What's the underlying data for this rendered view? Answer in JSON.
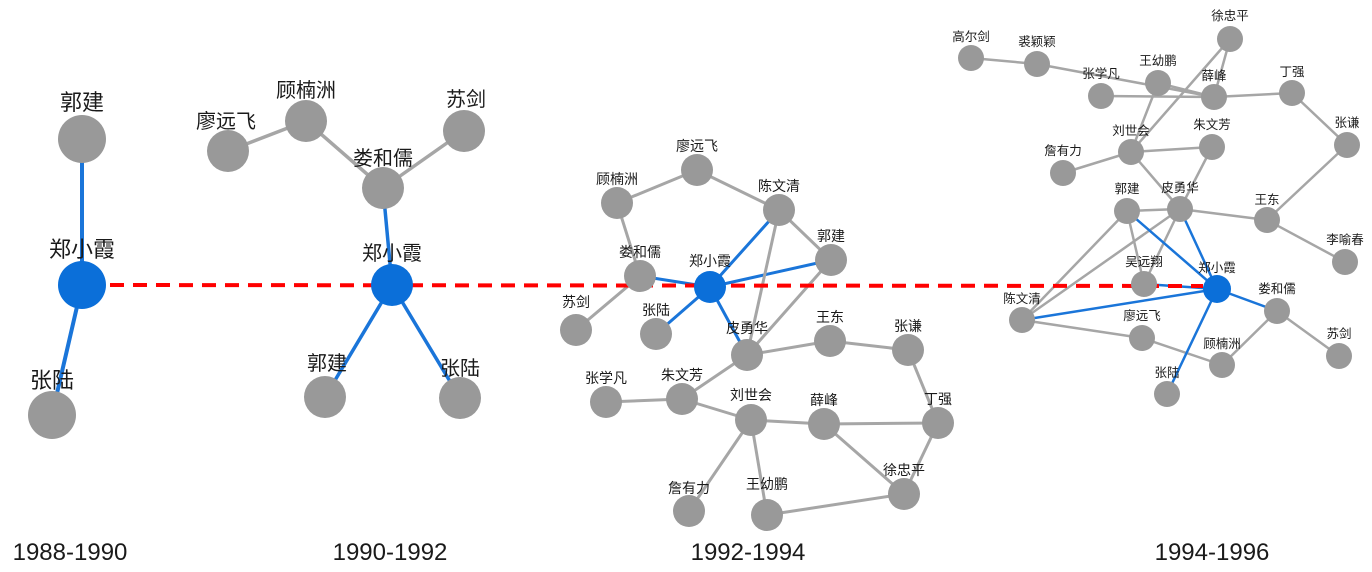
{
  "colors": {
    "node": "#999999",
    "focus_node": "#0b6fd9",
    "edge": "#a6a6a6",
    "focus_edge": "#1a75d9",
    "timeline": "#ff0000"
  },
  "focus_person": "郑小霞",
  "panels": [
    {
      "period": "1988-1990",
      "nodes": [
        {
          "id": "guojian",
          "label": "郭建"
        },
        {
          "id": "zhengxiaoxia",
          "label": "郑小霞",
          "focus": true
        },
        {
          "id": "zhanglu",
          "label": "张陆"
        }
      ],
      "edges": [
        [
          "guojian",
          "zhengxiaoxia"
        ],
        [
          "zhengxiaoxia",
          "zhanglu"
        ]
      ]
    },
    {
      "period": "1990-1992",
      "nodes": [
        {
          "id": "liaoyuanfei",
          "label": "廖远飞"
        },
        {
          "id": "gunanzhou",
          "label": "顾楠洲"
        },
        {
          "id": "loueru",
          "label": "娄和儒"
        },
        {
          "id": "sujian",
          "label": "苏剑"
        },
        {
          "id": "zhengxiaoxia",
          "label": "郑小霞",
          "focus": true
        },
        {
          "id": "guojian",
          "label": "郭建"
        },
        {
          "id": "zhanglu",
          "label": "张陆"
        }
      ],
      "edges": [
        [
          "liaoyuanfei",
          "gunanzhou"
        ],
        [
          "gunanzhou",
          "loueru"
        ],
        [
          "loueru",
          "sujian"
        ],
        [
          "loueru",
          "zhengxiaoxia"
        ],
        [
          "zhengxiaoxia",
          "guojian"
        ],
        [
          "zhengxiaoxia",
          "zhanglu"
        ]
      ]
    },
    {
      "period": "1992-1994",
      "nodes": [
        {
          "id": "liaoyuanfei",
          "label": "廖远飞"
        },
        {
          "id": "gunanzhou",
          "label": "顾楠洲"
        },
        {
          "id": "chenwenqing",
          "label": "陈文清"
        },
        {
          "id": "guojian",
          "label": "郭建"
        },
        {
          "id": "loueru",
          "label": "娄和儒"
        },
        {
          "id": "zhengxiaoxia",
          "label": "郑小霞",
          "focus": true
        },
        {
          "id": "sujian",
          "label": "苏剑"
        },
        {
          "id": "zhanglu",
          "label": "张陆"
        },
        {
          "id": "piyonghua",
          "label": "皮勇华"
        },
        {
          "id": "wangdong",
          "label": "王东"
        },
        {
          "id": "zhangqian",
          "label": "张谦"
        },
        {
          "id": "zhangxuefan",
          "label": "张学凡"
        },
        {
          "id": "zhuwenfang",
          "label": "朱文芳"
        },
        {
          "id": "liushihui",
          "label": "刘世会"
        },
        {
          "id": "xuefeng",
          "label": "薛峰"
        },
        {
          "id": "dingqiang",
          "label": "丁强"
        },
        {
          "id": "xuzhongping",
          "label": "徐忠平"
        },
        {
          "id": "wangyoupeng",
          "label": "王幼鹏"
        },
        {
          "id": "zhanyouli",
          "label": "詹有力"
        }
      ],
      "edges": [
        [
          "liaoyuanfei",
          "gunanzhou"
        ],
        [
          "liaoyuanfei",
          "chenwenqing"
        ],
        [
          "gunanzhou",
          "loueru"
        ],
        [
          "loueru",
          "sujian"
        ],
        [
          "loueru",
          "zhengxiaoxia"
        ],
        [
          "zhengxiaoxia",
          "chenwenqing"
        ],
        [
          "zhengxiaoxia",
          "guojian"
        ],
        [
          "zhengxiaoxia",
          "zhanglu"
        ],
        [
          "zhengxiaoxia",
          "piyonghua"
        ],
        [
          "chenwenqing",
          "guojian"
        ],
        [
          "chenwenqing",
          "piyonghua"
        ],
        [
          "guojian",
          "piyonghua"
        ],
        [
          "piyonghua",
          "wangdong"
        ],
        [
          "wangdong",
          "zhangqian"
        ],
        [
          "piyonghua",
          "zhuwenfang"
        ],
        [
          "zhangxuefan",
          "zhuwenfang"
        ],
        [
          "zhuwenfang",
          "liushihui"
        ],
        [
          "liushihui",
          "xuefeng"
        ],
        [
          "xuefeng",
          "dingqiang"
        ],
        [
          "zhangqian",
          "dingqiang"
        ],
        [
          "liushihui",
          "zhanyouli"
        ],
        [
          "liushihui",
          "wangyoupeng"
        ],
        [
          "wangyoupeng",
          "xuzhongping"
        ],
        [
          "xuefeng",
          "xuzhongping"
        ],
        [
          "dingqiang",
          "xuzhongping"
        ]
      ]
    },
    {
      "period": "1994-1996",
      "nodes": [
        {
          "id": "gaoerjian",
          "label": "高尔剑"
        },
        {
          "id": "qiuyingying",
          "label": "裘颖颖"
        },
        {
          "id": "xuzhongping",
          "label": "徐忠平"
        },
        {
          "id": "wangyoupeng",
          "label": "王幼鹏"
        },
        {
          "id": "zhangxuefan",
          "label": "张学凡"
        },
        {
          "id": "xuefeng",
          "label": "薛峰"
        },
        {
          "id": "dingqiang",
          "label": "丁强"
        },
        {
          "id": "zhangqian",
          "label": "张谦"
        },
        {
          "id": "liushihui",
          "label": "刘世会"
        },
        {
          "id": "zhuwenfang",
          "label": "朱文芳"
        },
        {
          "id": "zhanyouli",
          "label": "詹有力"
        },
        {
          "id": "guojian",
          "label": "郭建"
        },
        {
          "id": "piyonghua",
          "label": "皮勇华"
        },
        {
          "id": "wangdong",
          "label": "王东"
        },
        {
          "id": "liyuchun",
          "label": "李喻春"
        },
        {
          "id": "wuyuanxiang",
          "label": "吴远翔"
        },
        {
          "id": "zhengxiaoxia",
          "label": "郑小霞",
          "focus": true
        },
        {
          "id": "chenwenqing",
          "label": "陈文清"
        },
        {
          "id": "loueru",
          "label": "娄和儒"
        },
        {
          "id": "liaoyuanfei",
          "label": "廖远飞"
        },
        {
          "id": "gunanzhou",
          "label": "顾楠洲"
        },
        {
          "id": "sujian",
          "label": "苏剑"
        },
        {
          "id": "zhanglu",
          "label": "张陆"
        }
      ],
      "edges": [
        [
          "gaoerjian",
          "qiuyingying"
        ],
        [
          "qiuyingying",
          "xuefeng"
        ],
        [
          "zhangxuefan",
          "xuefeng"
        ],
        [
          "wangyoupeng",
          "xuefeng"
        ],
        [
          "xuzhongping",
          "xuefeng"
        ],
        [
          "xuefeng",
          "dingqiang"
        ],
        [
          "dingqiang",
          "zhangqian"
        ],
        [
          "xuzhongping",
          "liushihui"
        ],
        [
          "wangyoupeng",
          "liushihui"
        ],
        [
          "zhanyouli",
          "liushihui"
        ],
        [
          "liushihui",
          "zhuwenfang"
        ],
        [
          "liushihui",
          "piyonghua"
        ],
        [
          "zhuwenfang",
          "piyonghua"
        ],
        [
          "zhangqian",
          "wangdong"
        ],
        [
          "piyonghua",
          "wangdong"
        ],
        [
          "wangdong",
          "liyuchun"
        ],
        [
          "guojian",
          "piyonghua"
        ],
        [
          "guojian",
          "wuyuanxiang"
        ],
        [
          "guojian",
          "chenwenqing"
        ],
        [
          "piyonghua",
          "chenwenqing"
        ],
        [
          "piyonghua",
          "wuyuanxiang"
        ],
        [
          "chenwenqing",
          "liaoyuanfei"
        ],
        [
          "liaoyuanfei",
          "gunanzhou"
        ],
        [
          "gunanzhou",
          "loueru"
        ],
        [
          "loueru",
          "sujian"
        ],
        [
          "guojian",
          "zhengxiaoxia"
        ],
        [
          "piyonghua",
          "zhengxiaoxia"
        ],
        [
          "chenwenqing",
          "zhengxiaoxia"
        ],
        [
          "zhengxiaoxia",
          "loueru"
        ],
        [
          "zhengxiaoxia",
          "zhanglu"
        ],
        [
          "wuyuanxiang",
          "zhengxiaoxia"
        ]
      ]
    }
  ]
}
